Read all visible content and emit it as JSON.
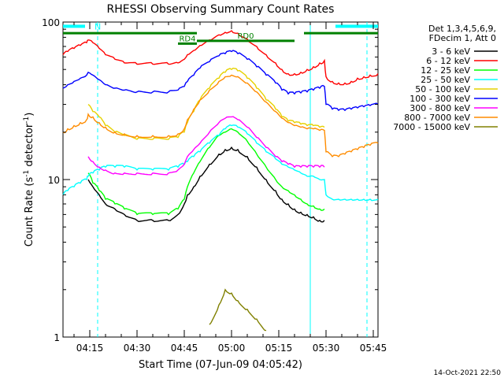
{
  "chart_data": {
    "type": "line",
    "title": "RHESSI Observing Summary Count Rates",
    "xlabel": "Start Time (07-Jun-09 04:05:42)",
    "ylabel": "Count Rate (s⁻¹ detector⁻¹)",
    "ylabel_parts": [
      "Count Rate (s",
      "-1",
      " detector",
      "-1",
      ")"
    ],
    "yscale": "log",
    "ylim": [
      1,
      100
    ],
    "xlim_minutes": [
      246.5,
      346.5
    ],
    "x_ticks": [
      {
        "label": "04:15",
        "minutes": 255
      },
      {
        "label": "04:30",
        "minutes": 270
      },
      {
        "label": "04:45",
        "minutes": 285
      },
      {
        "label": "05:00",
        "minutes": 300
      },
      {
        "label": "05:15",
        "minutes": 315
      },
      {
        "label": "05:30",
        "minutes": 330
      },
      {
        "label": "05:45",
        "minutes": 345
      }
    ],
    "y_ticks": [
      {
        "label": "1",
        "value": 1
      },
      {
        "label": "10",
        "value": 10
      },
      {
        "label": "100",
        "value": 100
      }
    ],
    "legend_header": [
      "Det 1,3,4,5,6,9,",
      "FDecim 1, Att 0"
    ],
    "legend_position": "top-right",
    "footer_date": "14-Oct-2021 22:50",
    "x_minutes": [
      246.5,
      248,
      250,
      252,
      254,
      254.5,
      256,
      258,
      260,
      263,
      266,
      270,
      275,
      280,
      283,
      285,
      286,
      288,
      290,
      293,
      296,
      298,
      300,
      302,
      305,
      308,
      311,
      314,
      316,
      318,
      320,
      322,
      324,
      326,
      328,
      329.5,
      330,
      332,
      334,
      336,
      338,
      340,
      342,
      344,
      346.5
    ],
    "series": [
      {
        "name": "3 - 6 keV",
        "color": "#000000",
        "values": [
          null,
          null,
          null,
          null,
          null,
          10,
          9,
          8,
          7,
          6.5,
          6,
          5.5,
          5.5,
          5.5,
          6,
          7,
          8,
          9,
          10.5,
          12.5,
          14.5,
          15.5,
          16,
          15.5,
          14,
          12,
          10,
          8.5,
          7.5,
          7,
          6.5,
          6.2,
          6,
          5.8,
          5.5,
          5.5,
          null,
          null,
          null,
          null,
          null,
          null,
          null,
          null,
          null
        ]
      },
      {
        "name": "6 - 12 keV",
        "color": "#ff0000",
        "values": [
          62,
          65,
          68,
          71,
          74,
          77,
          74,
          68,
          62,
          58,
          55,
          54,
          54,
          54,
          55,
          58,
          62,
          66,
          71,
          77,
          83,
          86,
          88,
          85,
          78,
          70,
          62,
          55,
          50,
          47,
          47,
          48,
          50,
          52,
          55,
          57,
          45,
          42,
          41,
          41,
          42,
          44,
          45,
          46,
          47
        ]
      },
      {
        "name": "12 - 25 keV",
        "color": "#00ff00",
        "values": [
          null,
          null,
          null,
          null,
          null,
          11,
          9.5,
          8.5,
          7.5,
          7,
          6.5,
          6,
          6,
          6,
          6.5,
          7.5,
          9,
          11,
          13,
          16,
          19,
          20,
          21,
          20,
          17.5,
          14.5,
          12,
          10,
          9,
          8.5,
          8,
          7.5,
          7,
          6.8,
          6.5,
          6.5,
          null,
          null,
          null,
          null,
          null,
          null,
          null,
          null,
          null
        ]
      },
      {
        "name": "25 - 50 keV",
        "color": "#00ffff",
        "values": [
          8,
          8.5,
          9,
          9.5,
          10,
          10.5,
          11,
          11.5,
          12,
          12,
          12,
          11.5,
          11.5,
          11.5,
          12,
          12.5,
          13,
          14,
          15,
          17,
          19,
          21,
          22,
          21.5,
          19.5,
          17,
          15,
          13.5,
          12.5,
          12,
          11.5,
          11,
          10.5,
          10.5,
          10,
          10,
          8,
          7.5,
          7.5,
          7.5,
          7.5,
          7.5,
          7.5,
          7.5,
          7.5
        ]
      },
      {
        "name": "50 - 100 keV",
        "color": "#e6d200",
        "values": [
          null,
          null,
          null,
          null,
          null,
          30,
          27,
          25,
          22,
          20,
          19,
          18,
          18,
          18,
          18.5,
          20,
          23,
          27,
          32,
          38,
          44,
          48,
          50,
          49,
          44,
          38,
          32,
          28,
          25,
          23.5,
          23,
          22.5,
          22,
          22,
          21.5,
          21.5,
          null,
          null,
          null,
          null,
          null,
          null,
          null,
          null,
          null
        ]
      },
      {
        "name": "100 - 300 keV",
        "color": "#0000ff",
        "values": [
          38,
          40,
          42,
          44,
          46,
          48,
          46,
          43,
          40,
          38,
          37,
          36,
          36,
          36,
          37,
          39,
          42,
          46,
          51,
          56,
          61,
          63,
          65,
          63,
          58,
          52,
          46,
          41,
          37,
          35,
          35,
          35.5,
          36,
          37,
          38,
          39,
          30,
          28,
          27.5,
          27.5,
          28,
          28.5,
          29,
          29.5,
          30
        ]
      },
      {
        "name": "300 - 800 keV",
        "color": "#ff00ff",
        "values": [
          null,
          null,
          null,
          null,
          null,
          14,
          13,
          12,
          11.5,
          11,
          11,
          11,
          11,
          11,
          11.5,
          12.5,
          14,
          15.5,
          17,
          20,
          23,
          24.5,
          25,
          24,
          21.5,
          18.5,
          16,
          14,
          13,
          12.5,
          12,
          12,
          12,
          12,
          12,
          12,
          null,
          null,
          null,
          null,
          null,
          null,
          null,
          null,
          null
        ]
      },
      {
        "name": "800 - 7000 keV",
        "color": "#ff8c00",
        "values": [
          20,
          21,
          22,
          23,
          24,
          26,
          25,
          23,
          21.5,
          20,
          19.5,
          19,
          19,
          19,
          19.5,
          21,
          24,
          28,
          32,
          37,
          42,
          45,
          46,
          45,
          41,
          36,
          31,
          27,
          24.5,
          23,
          22,
          21.5,
          21,
          21,
          20.5,
          20.5,
          15,
          14,
          14,
          14.5,
          15,
          15.5,
          16,
          16.5,
          17
        ]
      },
      {
        "name": "7000 - 15000 keV",
        "color": "#808000",
        "values": [
          null,
          null,
          null,
          null,
          null,
          null,
          null,
          null,
          null,
          null,
          null,
          null,
          null,
          null,
          null,
          null,
          null,
          null,
          null,
          1.2,
          1.6,
          2.0,
          1.9,
          1.7,
          1.5,
          1.3,
          1.1,
          null,
          null,
          null,
          null,
          null,
          null,
          null,
          null,
          null,
          null,
          null,
          null,
          null,
          null,
          null,
          null,
          null,
          null
        ]
      }
    ],
    "attenuator_bars": [
      {
        "label": "N",
        "color": "#00ffff",
        "start_minutes": 246.5,
        "end_minutes": 253.5,
        "level": 94
      },
      {
        "label": "",
        "color": "#00ffff",
        "start_minutes": 333,
        "end_minutes": 346.5,
        "level": 94
      }
    ],
    "state_bars": [
      {
        "label": "",
        "color": "#008000",
        "start_minutes": 246.5,
        "end_minutes": 289,
        "level": 85
      },
      {
        "label": "RD4",
        "color": "#008000",
        "start_minutes": 283,
        "end_minutes": 289,
        "level": 73
      },
      {
        "label": "RD0",
        "color": "#008000",
        "start_minutes": 289,
        "end_minutes": 320,
        "level": 76
      },
      {
        "label": "",
        "color": "#008000",
        "start_minutes": 323,
        "end_minutes": 346.5,
        "level": 85
      }
    ],
    "vertical_markers": [
      {
        "minutes": 257.5,
        "style": "dashed",
        "color": "#00ffff"
      },
      {
        "minutes": 325,
        "style": "solid",
        "color": "#00ffff"
      },
      {
        "minutes": 343,
        "style": "dashed",
        "color": "#00ffff"
      }
    ]
  }
}
